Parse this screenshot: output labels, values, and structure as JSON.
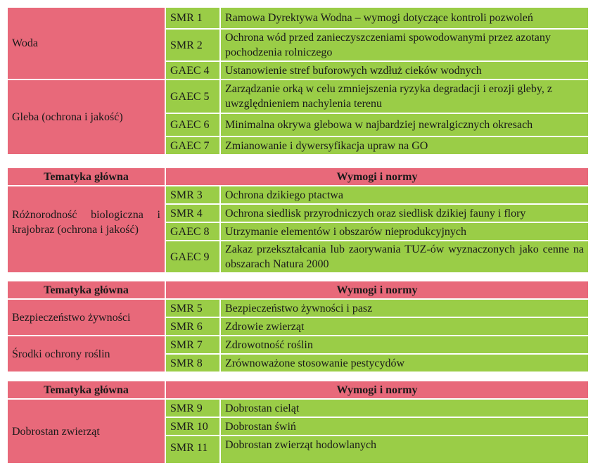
{
  "colors": {
    "pink": "#e8697a",
    "green": "#9acd47"
  },
  "table1": {
    "groups": [
      {
        "topic": "Woda",
        "rows": [
          {
            "code": "SMR 1",
            "desc": "Ramowa Dyrektywa Wodna – wymogi dotyczące kontroli pozwoleń"
          },
          {
            "code": "SMR 2",
            "desc": "Ochrona wód przed zanieczyszczeniami spowodowanymi przez azotany pochodzenia rolniczego"
          },
          {
            "code": "GAEC 4",
            "desc": "Ustanowienie stref buforowych wzdłuż cieków wodnych"
          }
        ]
      },
      {
        "topic": "Gleba (ochrona i jakość)",
        "rows": [
          {
            "code": "GAEC 5",
            "desc": "Zarządzanie orką w celu zmniejszenia ryzyka degradacji i erozji gleby, z uwzględnieniem nachylenia terenu"
          },
          {
            "code": "GAEC 6",
            "desc": "Minimalna okrywa glebowa w najbardziej newralgicznych okresach"
          },
          {
            "code": "GAEC 7",
            "desc": "Zmianowanie i dywersyfikacja upraw na GO"
          }
        ]
      }
    ]
  },
  "table2": {
    "header": {
      "topic": "Tematyka główna",
      "req": "Wymogi i normy"
    },
    "groups": [
      {
        "topic": "Różnorodność biologiczna i krajobraz (ochrona i jakość)",
        "rows": [
          {
            "code": "SMR 3",
            "desc": "Ochrona dzikiego ptactwa"
          },
          {
            "code": "SMR 4",
            "desc": "Ochrona siedlisk przyrodniczych oraz siedlisk dzikiej fauny i flory"
          },
          {
            "code": "GAEC 8",
            "desc": "Utrzymanie elementów i obszarów nieprodukcyjnych"
          },
          {
            "code": "GAEC 9",
            "desc": "Zakaz przekształcania lub zaorywania TUZ-ów wyznaczonych jako cenne na obszarach Natura 2000"
          }
        ]
      }
    ]
  },
  "table3": {
    "header": {
      "topic": "Tematyka główna",
      "req": "Wymogi i normy"
    },
    "groups": [
      {
        "topic": "Bezpieczeństwo żywności",
        "rows": [
          {
            "code": "SMR 5",
            "desc": "Bezpieczeństwo żywności i pasz"
          },
          {
            "code": "SMR 6",
            "desc": "Zdrowie zwierząt"
          }
        ]
      },
      {
        "topic": "Środki ochrony roślin",
        "rows": [
          {
            "code": "SMR 7",
            "desc": "Zdrowotność roślin"
          },
          {
            "code": "SMR 8",
            "desc": "Zrównoważone stosowanie pestycydów"
          }
        ]
      }
    ]
  },
  "table4": {
    "header": {
      "topic": "Tematyka główna",
      "req": "Wymogi i normy"
    },
    "groups": [
      {
        "topic": "Dobrostan zwierząt",
        "rows": [
          {
            "code": "SMR 9",
            "desc": "Dobrostan cieląt"
          },
          {
            "code": "SMR 10",
            "desc": "Dobrostan świń"
          },
          {
            "code": "SMR 11",
            "desc": "Dobrostan zwierząt hodowlanych"
          }
        ]
      }
    ]
  }
}
